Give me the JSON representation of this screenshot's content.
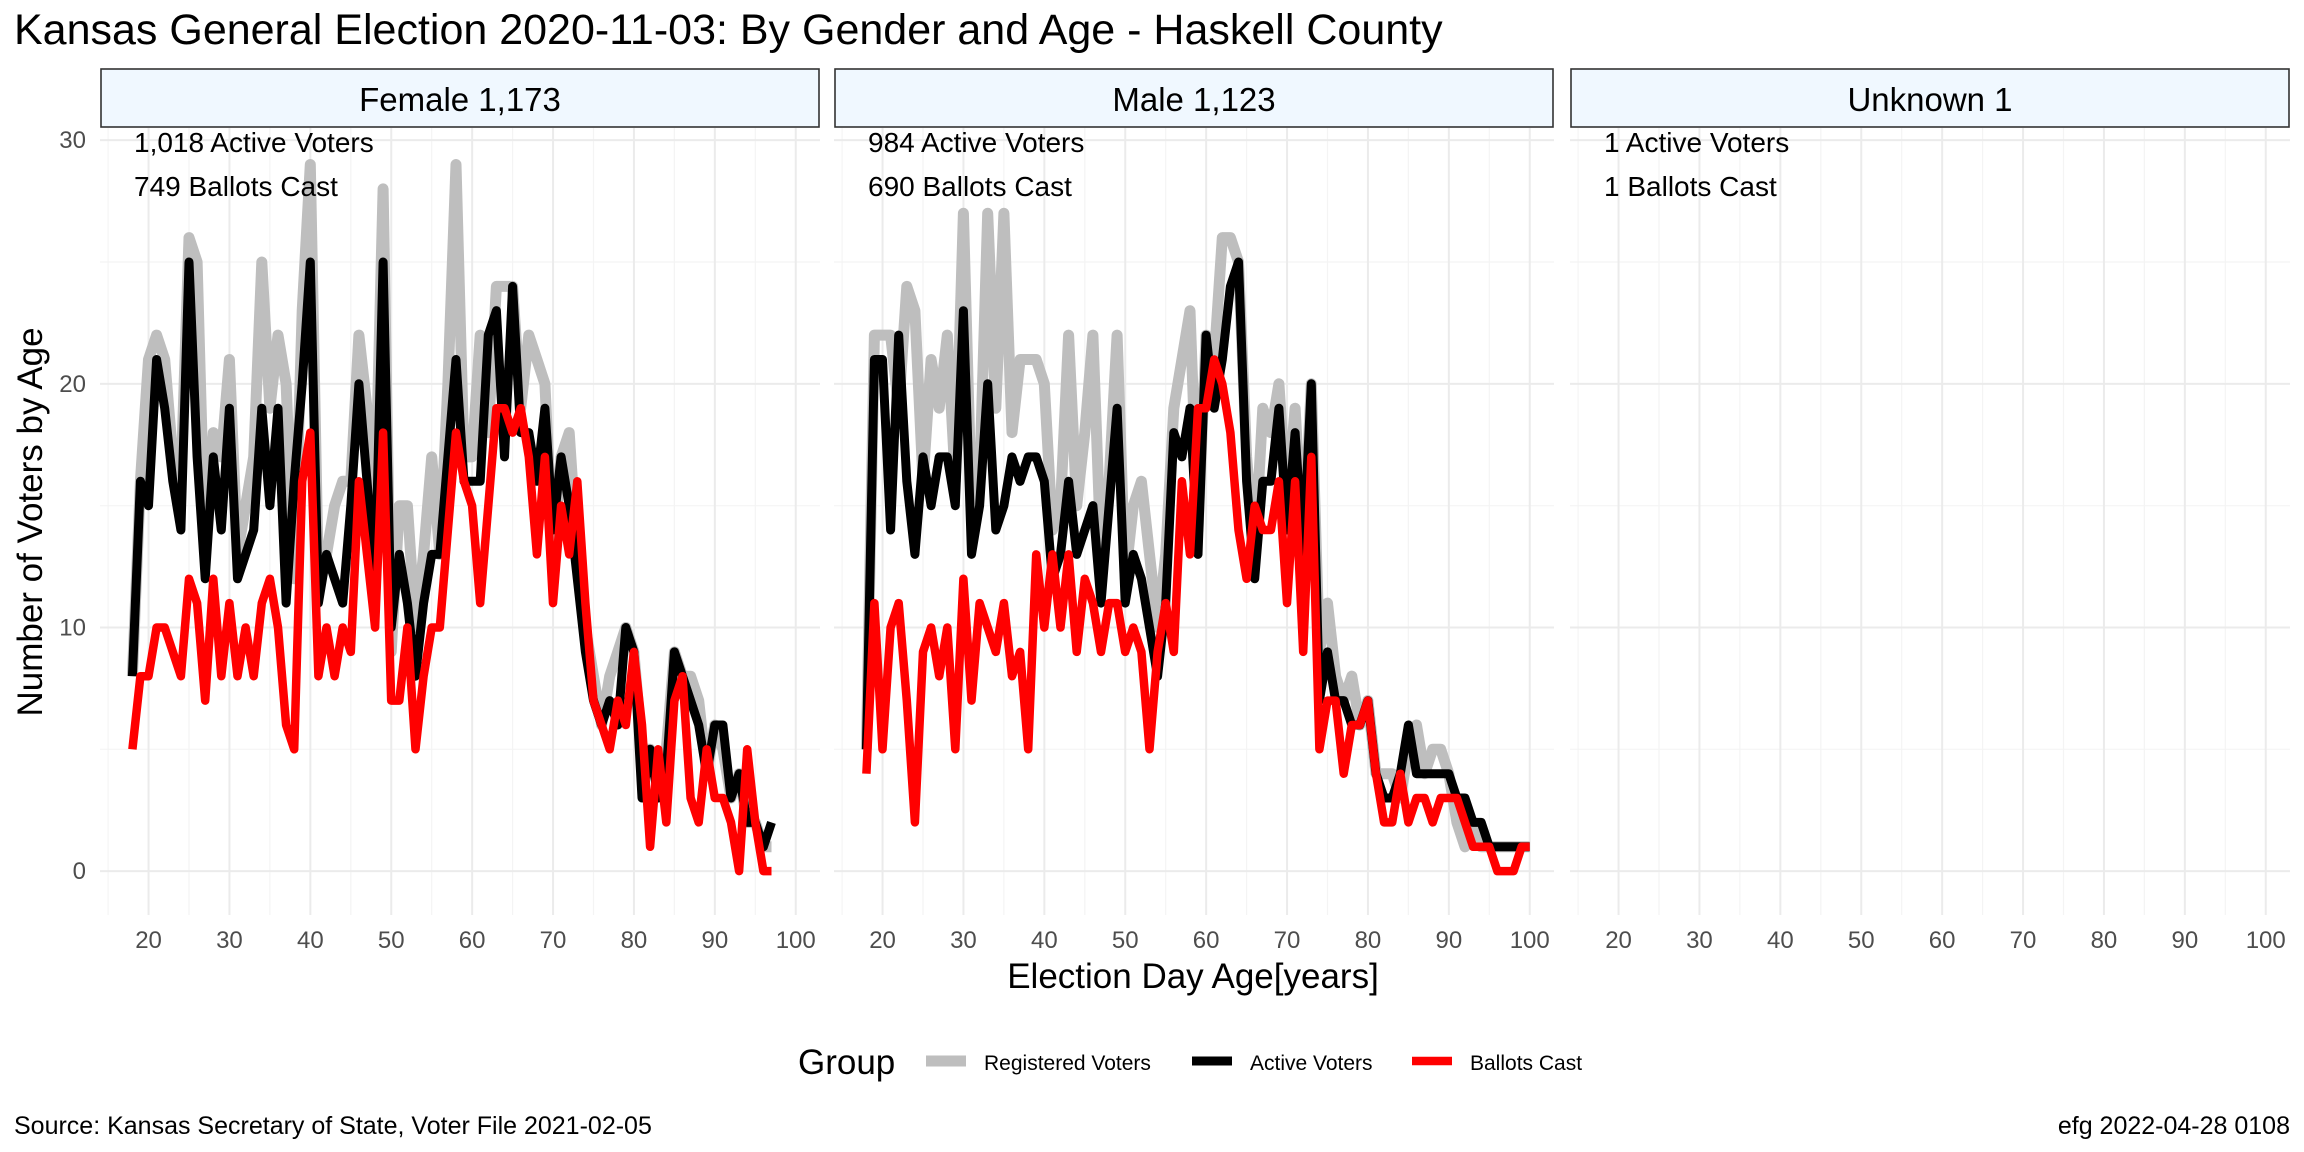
{
  "chart_data": {
    "type": "line",
    "title": "Kansas General Election 2020-11-03:  By Gender and Age - Haskell County",
    "xlabel": "Election Day Age[years]",
    "ylabel": "Number of Voters by Age",
    "xlim": [
      14,
      103
    ],
    "ylim": [
      -1.8,
      30.5
    ],
    "xticks": [
      20,
      30,
      40,
      50,
      60,
      70,
      80,
      90,
      100
    ],
    "yticks": [
      0,
      10,
      20,
      30
    ],
    "grid": true,
    "legend": {
      "title": "Group",
      "position": "bottom",
      "entries": [
        "Registered Voters",
        "Active Voters",
        "Ballots Cast"
      ]
    },
    "colors": {
      "Registered Voters": "#bebebe",
      "Active Voters": "#000000",
      "Ballots Cast": "#ff0000",
      "strip_fill": "#f0f8ff",
      "grid": "#ebebeb"
    },
    "caption_left": "Source:  Kansas Secretary of State, Voter File  2021-02-05",
    "caption_right": "efg 2022-04-28 0108",
    "panels": [
      {
        "strip": "Female 1,173",
        "note1": "1,018 Active Voters",
        "note2": "749 Ballots Cast",
        "series": [
          {
            "name": "Registered Voters",
            "x": [
              18,
              19,
              20,
              21,
              22,
              23,
              24,
              25,
              26,
              27,
              28,
              29,
              30,
              31,
              32,
              33,
              34,
              35,
              36,
              37,
              38,
              39,
              40,
              41,
              42,
              43,
              44,
              45,
              46,
              47,
              48,
              49,
              50,
              51,
              52,
              53,
              54,
              55,
              56,
              57,
              58,
              59,
              60,
              61,
              62,
              63,
              64,
              65,
              66,
              67,
              68,
              69,
              70,
              71,
              72,
              73,
              74,
              75,
              76,
              77,
              78,
              79,
              80,
              81,
              82,
              83,
              84,
              85,
              86,
              87,
              88,
              89,
              90,
              91,
              92,
              93,
              94,
              95,
              96,
              97
            ],
            "values": [
              8,
              16,
              21,
              22,
              21,
              17,
              16,
              26,
              25,
              13,
              18,
              17,
              21,
              13,
              15,
              17,
              25,
              19,
              22,
              20,
              12,
              23,
              29,
              12,
              13,
              15,
              16,
              16,
              22,
              19,
              15,
              28,
              9,
              15,
              15,
              10,
              13,
              17,
              13,
              20,
              29,
              17,
              17,
              22,
              18,
              24,
              24,
              24,
              19,
              22,
              21,
              20,
              13,
              17,
              18,
              13,
              10,
              8,
              6,
              8,
              9,
              10,
              9,
              5,
              5,
              4,
              5,
              9,
              8,
              8,
              7,
              4,
              6,
              5,
              3,
              4,
              2,
              2,
              1,
              1
            ]
          },
          {
            "name": "Active Voters",
            "x": [
              18,
              19,
              20,
              21,
              22,
              23,
              24,
              25,
              26,
              27,
              28,
              29,
              30,
              31,
              32,
              33,
              34,
              35,
              36,
              37,
              38,
              39,
              40,
              41,
              42,
              43,
              44,
              45,
              46,
              47,
              48,
              49,
              50,
              51,
              52,
              53,
              54,
              55,
              56,
              57,
              58,
              59,
              60,
              61,
              62,
              63,
              64,
              65,
              66,
              67,
              68,
              69,
              70,
              71,
              72,
              73,
              74,
              75,
              76,
              77,
              78,
              79,
              80,
              81,
              82,
              83,
              84,
              85,
              86,
              87,
              88,
              89,
              90,
              91,
              92,
              93,
              94,
              95,
              96,
              97
            ],
            "values": [
              8,
              16,
              15,
              21,
              19,
              16,
              14,
              25,
              17,
              12,
              17,
              14,
              19,
              12,
              13,
              14,
              19,
              15,
              19,
              11,
              16,
              20,
              25,
              11,
              13,
              12,
              11,
              15,
              20,
              16,
              12,
              25,
              10,
              13,
              11,
              8,
              11,
              13,
              13,
              17,
              21,
              16,
              16,
              16,
              22,
              23,
              17,
              24,
              18,
              18,
              16,
              19,
              14,
              17,
              15,
              12,
              9,
              7,
              6,
              7,
              6,
              10,
              9,
              3,
              5,
              3,
              4,
              9,
              8,
              7,
              6,
              4,
              6,
              6,
              3,
              4,
              2,
              2,
              1,
              2
            ]
          },
          {
            "name": "Ballots Cast",
            "x": [
              18,
              19,
              20,
              21,
              22,
              23,
              24,
              25,
              26,
              27,
              28,
              29,
              30,
              31,
              32,
              33,
              34,
              35,
              36,
              37,
              38,
              39,
              40,
              41,
              42,
              43,
              44,
              45,
              46,
              47,
              48,
              49,
              50,
              51,
              52,
              53,
              54,
              55,
              56,
              57,
              58,
              59,
              60,
              61,
              62,
              63,
              64,
              65,
              66,
              67,
              68,
              69,
              70,
              71,
              72,
              73,
              74,
              75,
              76,
              77,
              78,
              79,
              80,
              81,
              82,
              83,
              84,
              85,
              86,
              87,
              88,
              89,
              90,
              91,
              92,
              93,
              94,
              95,
              96,
              97
            ],
            "values": [
              5,
              8,
              8,
              10,
              10,
              9,
              8,
              12,
              11,
              7,
              12,
              8,
              11,
              8,
              10,
              8,
              11,
              12,
              10,
              6,
              5,
              16,
              18,
              8,
              10,
              8,
              10,
              9,
              16,
              13,
              10,
              18,
              7,
              7,
              10,
              5,
              8,
              10,
              10,
              14,
              18,
              16,
              15,
              11,
              15,
              19,
              19,
              18,
              19,
              17,
              13,
              17,
              11,
              15,
              13,
              16,
              11,
              7,
              6,
              5,
              7,
              6,
              9,
              6,
              1,
              5,
              2,
              7,
              8,
              3,
              2,
              5,
              3,
              3,
              2,
              0,
              5,
              2,
              0,
              0
            ]
          }
        ]
      },
      {
        "strip": "Male 1,123",
        "note1": "984 Active Voters",
        "note2": "690 Ballots Cast",
        "series": [
          {
            "name": "Registered Voters",
            "x": [
              18,
              19,
              20,
              21,
              22,
              23,
              24,
              25,
              26,
              27,
              28,
              29,
              30,
              31,
              32,
              33,
              34,
              35,
              36,
              37,
              38,
              39,
              40,
              41,
              42,
              43,
              44,
              45,
              46,
              47,
              48,
              49,
              50,
              51,
              52,
              53,
              54,
              55,
              56,
              57,
              58,
              59,
              60,
              61,
              62,
              63,
              64,
              65,
              66,
              67,
              68,
              69,
              70,
              71,
              72,
              73,
              74,
              75,
              76,
              77,
              78,
              79,
              80,
              81,
              82,
              83,
              84,
              85,
              86,
              87,
              88,
              89,
              90,
              91,
              92,
              93,
              94,
              95,
              96,
              97,
              98,
              99,
              100
            ],
            "values": [
              5,
              22,
              22,
              22,
              19,
              24,
              23,
              16,
              21,
              19,
              22,
              16,
              27,
              15,
              16,
              27,
              19,
              27,
              18,
              21,
              21,
              21,
              20,
              14,
              15,
              22,
              15,
              18,
              22,
              13,
              16,
              22,
              12,
              15,
              16,
              13,
              10,
              13,
              19,
              21,
              23,
              14,
              22,
              21,
              26,
              26,
              25,
              17,
              13,
              19,
              18,
              20,
              15,
              19,
              13,
              20,
              9,
              11,
              8,
              7,
              8,
              6,
              7,
              4,
              4,
              4,
              3,
              5,
              6,
              4,
              5,
              5,
              4,
              2,
              1,
              2,
              1,
              1,
              1,
              1,
              1,
              1,
              1
            ]
          },
          {
            "name": "Active Voters",
            "x": [
              18,
              19,
              20,
              21,
              22,
              23,
              24,
              25,
              26,
              27,
              28,
              29,
              30,
              31,
              32,
              33,
              34,
              35,
              36,
              37,
              38,
              39,
              40,
              41,
              42,
              43,
              44,
              45,
              46,
              47,
              48,
              49,
              50,
              51,
              52,
              53,
              54,
              55,
              56,
              57,
              58,
              59,
              60,
              61,
              62,
              63,
              64,
              65,
              66,
              67,
              68,
              69,
              70,
              71,
              72,
              73,
              74,
              75,
              76,
              77,
              78,
              79,
              80,
              81,
              82,
              83,
              84,
              85,
              86,
              87,
              88,
              89,
              90,
              91,
              92,
              93,
              94,
              95,
              96,
              97,
              98,
              99,
              100
            ],
            "values": [
              5,
              21,
              21,
              14,
              22,
              16,
              13,
              17,
              15,
              17,
              17,
              15,
              23,
              13,
              15,
              20,
              14,
              15,
              17,
              16,
              17,
              17,
              16,
              12,
              13,
              16,
              13,
              14,
              15,
              11,
              15,
              19,
              11,
              13,
              12,
              10,
              8,
              11,
              18,
              17,
              19,
              13,
              22,
              19,
              21,
              24,
              25,
              16,
              12,
              16,
              16,
              19,
              14,
              18,
              13,
              20,
              7,
              9,
              7,
              7,
              6,
              6,
              7,
              4,
              3,
              3,
              4,
              6,
              4,
              4,
              4,
              4,
              4,
              3,
              3,
              2,
              2,
              1,
              1,
              1,
              1,
              1,
              1
            ]
          },
          {
            "name": "Ballots Cast",
            "x": [
              18,
              19,
              20,
              21,
              22,
              23,
              24,
              25,
              26,
              27,
              28,
              29,
              30,
              31,
              32,
              33,
              34,
              35,
              36,
              37,
              38,
              39,
              40,
              41,
              42,
              43,
              44,
              45,
              46,
              47,
              48,
              49,
              50,
              51,
              52,
              53,
              54,
              55,
              56,
              57,
              58,
              59,
              60,
              61,
              62,
              63,
              64,
              65,
              66,
              67,
              68,
              69,
              70,
              71,
              72,
              73,
              74,
              75,
              76,
              77,
              78,
              79,
              80,
              81,
              82,
              83,
              84,
              85,
              86,
              87,
              88,
              89,
              90,
              91,
              92,
              93,
              94,
              95,
              96,
              97,
              98,
              99,
              100
            ],
            "values": [
              4,
              11,
              5,
              10,
              11,
              7,
              2,
              9,
              10,
              8,
              10,
              5,
              12,
              7,
              11,
              10,
              9,
              11,
              8,
              9,
              5,
              13,
              10,
              13,
              10,
              13,
              9,
              12,
              11,
              9,
              11,
              11,
              9,
              10,
              9,
              5,
              9,
              11,
              9,
              16,
              13,
              19,
              19,
              21,
              20,
              18,
              14,
              12,
              15,
              14,
              14,
              16,
              11,
              16,
              9,
              17,
              5,
              7,
              7,
              4,
              6,
              6,
              7,
              4,
              2,
              2,
              4,
              2,
              3,
              3,
              2,
              3,
              3,
              3,
              2,
              1,
              1,
              1,
              0,
              0,
              0,
              1,
              1
            ]
          }
        ]
      },
      {
        "strip": "Unknown 1",
        "note1": "1 Active Voters",
        "note2": "1 Ballots Cast",
        "series": []
      }
    ]
  }
}
